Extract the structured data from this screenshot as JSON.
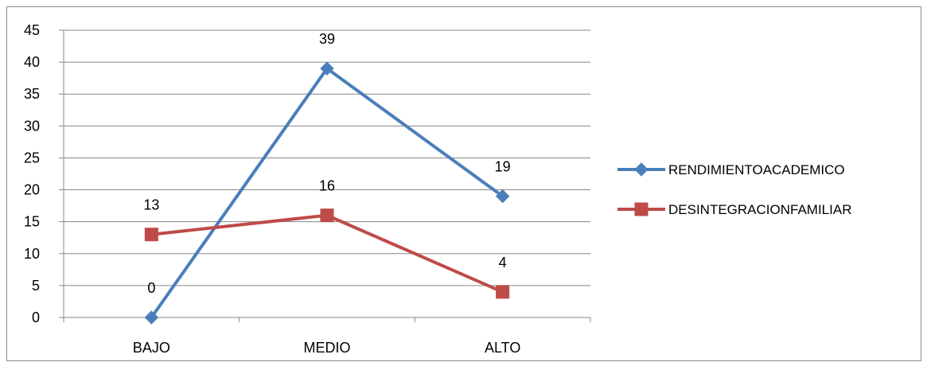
{
  "chart_data": {
    "type": "line",
    "categories": [
      "BAJO",
      "MEDIO",
      "ALTO"
    ],
    "series": [
      {
        "name": "RENDIMIENTOACADEMICO",
        "values": [
          0,
          39,
          19
        ],
        "color": "#4a7ebb",
        "marker": "diamond"
      },
      {
        "name": "DESINTEGRACIONFAMILIAR",
        "values": [
          13,
          16,
          4
        ],
        "color": "#be4b48",
        "marker": "square"
      }
    ],
    "ylim": [
      0,
      45
    ],
    "yticks": [
      0,
      5,
      10,
      15,
      20,
      25,
      30,
      35,
      40,
      45
    ],
    "grid": true,
    "legend": "right",
    "data_labels": true
  }
}
